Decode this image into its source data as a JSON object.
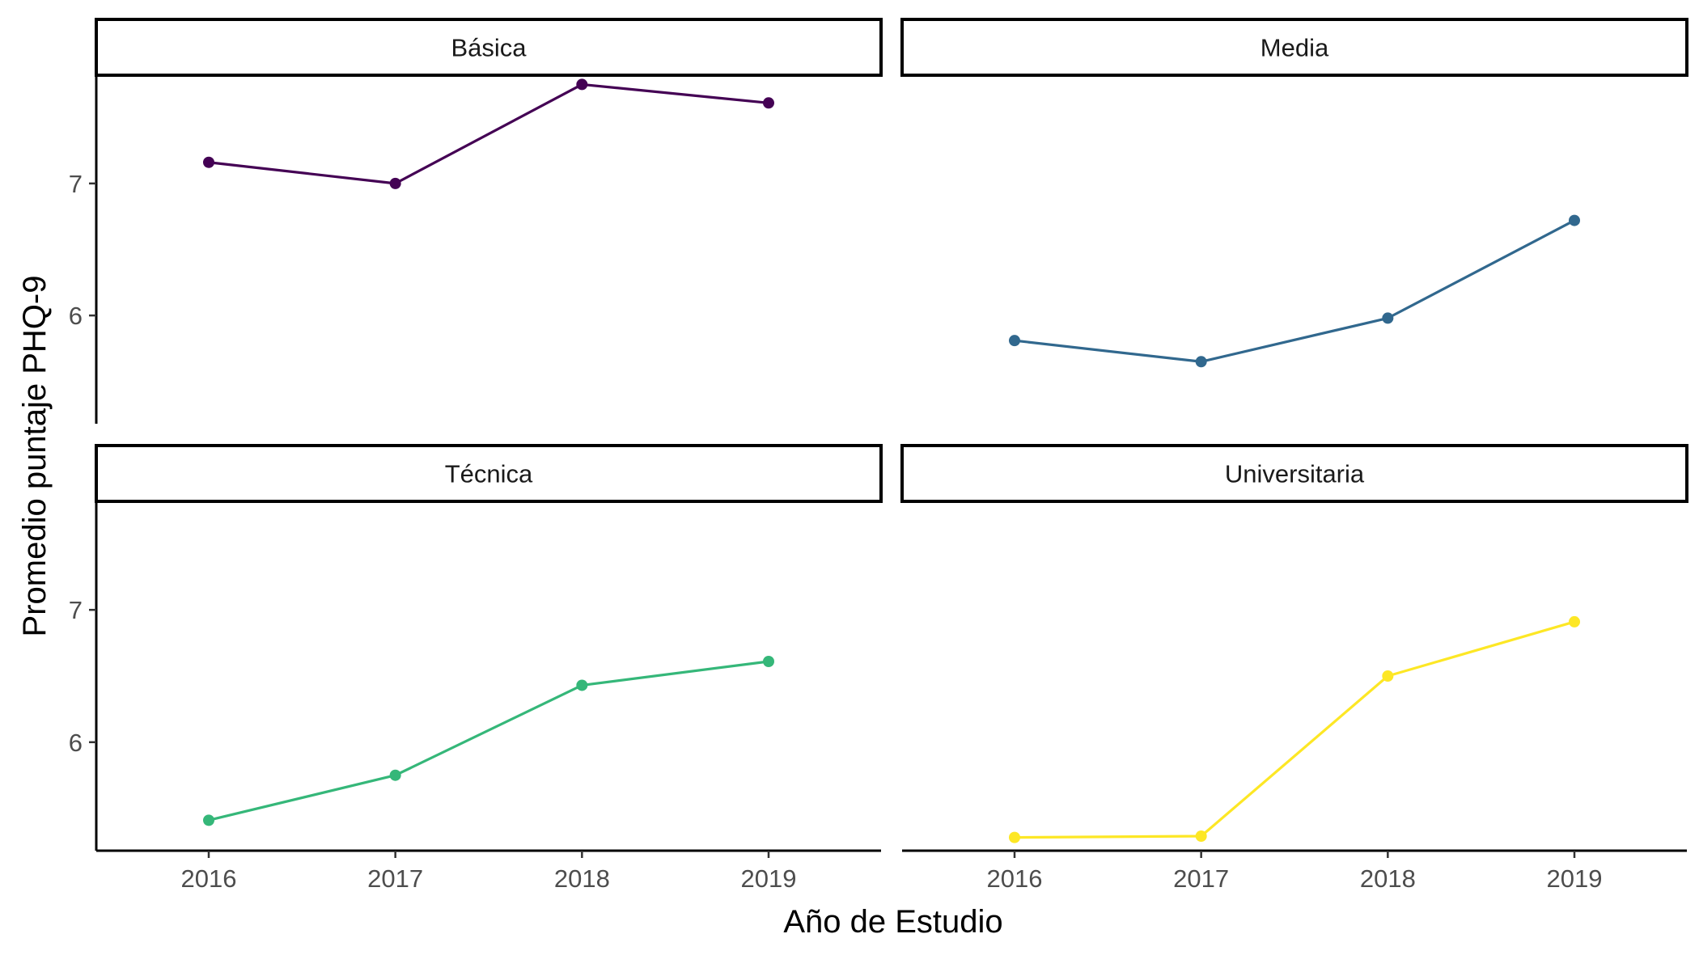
{
  "chart_data": {
    "type": "line",
    "xlabel": "Año de Estudio",
    "ylabel": "Promedio puntaje PHQ-9",
    "x": [
      2016,
      2017,
      2018,
      2019
    ],
    "x_tick_labels": [
      "2016",
      "2017",
      "2018",
      "2019"
    ],
    "y_ticks": [
      6,
      7
    ],
    "y_tick_labels": [
      "6",
      "7"
    ],
    "ylim": [
      5.18,
      7.82
    ],
    "grid": false,
    "panels": [
      {
        "name": "Básica",
        "color": "#440154",
        "values": [
          7.16,
          7.0,
          7.75,
          7.61
        ]
      },
      {
        "name": "Media",
        "color": "#31688E",
        "values": [
          5.81,
          5.65,
          5.98,
          6.72
        ]
      },
      {
        "name": "Técnica",
        "color": "#35B779",
        "values": [
          5.41,
          5.75,
          6.43,
          6.61
        ]
      },
      {
        "name": "Universitaria",
        "color": "#FDE725",
        "values": [
          5.28,
          5.29,
          6.5,
          6.91
        ]
      }
    ]
  }
}
